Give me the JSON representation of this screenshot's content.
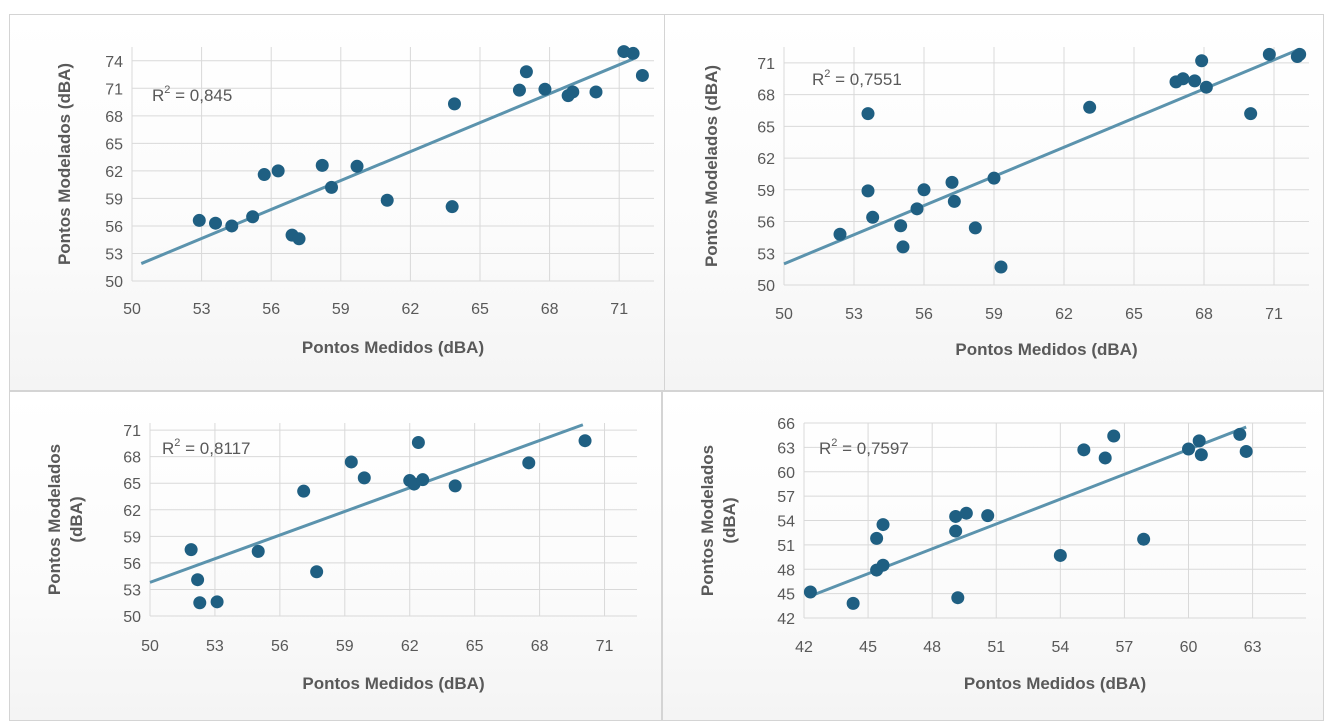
{
  "chart_data": [
    {
      "type": "scatter",
      "annotation": {
        "prefix": "R",
        "sup": "2",
        "text": " = 0,845"
      },
      "xlabel": "Pontos Medidos (dBA)",
      "ylabel": "Pontos Modelados (dBA)",
      "xlim": [
        50,
        72.5
      ],
      "ylim": [
        50,
        75.5
      ],
      "xticks": [
        50,
        53,
        56,
        59,
        62,
        65,
        68,
        71
      ],
      "yticks": [
        50,
        53,
        56,
        59,
        62,
        65,
        68,
        71,
        74
      ],
      "grid": true,
      "points": [
        [
          52.9,
          56.6
        ],
        [
          53.6,
          56.3
        ],
        [
          54.3,
          56.0
        ],
        [
          55.2,
          57.0
        ],
        [
          55.7,
          61.6
        ],
        [
          56.3,
          62.0
        ],
        [
          56.9,
          55.0
        ],
        [
          57.2,
          54.6
        ],
        [
          58.2,
          62.6
        ],
        [
          58.6,
          60.2
        ],
        [
          59.7,
          62.5
        ],
        [
          61.0,
          58.8
        ],
        [
          63.9,
          69.3
        ],
        [
          63.8,
          58.1
        ],
        [
          66.7,
          70.8
        ],
        [
          67.0,
          72.8
        ],
        [
          67.8,
          70.9
        ],
        [
          68.8,
          70.2
        ],
        [
          69.0,
          70.6
        ],
        [
          70.0,
          70.6
        ],
        [
          71.2,
          75.0
        ],
        [
          71.6,
          74.8
        ],
        [
          72.0,
          72.4
        ]
      ],
      "trendline": [
        [
          50.4,
          51.9
        ],
        [
          71.6,
          74.2
        ]
      ],
      "colors": {
        "marker": "#1f5f82",
        "trend": "#5b93ad",
        "grid": "#d9d9d9"
      }
    },
    {
      "type": "scatter",
      "annotation": {
        "prefix": "R",
        "sup": "2",
        "text": " = 0,7551"
      },
      "xlabel": "Pontos Medidos (dBA)",
      "ylabel": "Pontos Modelados (dBA)",
      "xlim": [
        50,
        72.5
      ],
      "ylim": [
        50,
        72.5
      ],
      "xticks": [
        50,
        53,
        56,
        59,
        62,
        65,
        68,
        71
      ],
      "yticks": [
        50,
        53,
        56,
        59,
        62,
        65,
        68,
        71
      ],
      "grid": true,
      "points": [
        [
          52.4,
          54.8
        ],
        [
          53.6,
          66.2
        ],
        [
          53.6,
          58.9
        ],
        [
          53.8,
          56.4
        ],
        [
          55.0,
          55.6
        ],
        [
          55.1,
          53.6
        ],
        [
          55.7,
          57.2
        ],
        [
          56.0,
          59.0
        ],
        [
          57.2,
          59.7
        ],
        [
          57.3,
          57.9
        ],
        [
          58.2,
          55.4
        ],
        [
          59.0,
          60.1
        ],
        [
          59.3,
          51.7
        ],
        [
          63.1,
          66.8
        ],
        [
          66.8,
          69.2
        ],
        [
          67.1,
          69.5
        ],
        [
          67.6,
          69.3
        ],
        [
          67.9,
          71.2
        ],
        [
          68.1,
          68.7
        ],
        [
          70.0,
          66.2
        ],
        [
          70.8,
          71.8
        ],
        [
          72.0,
          71.6
        ],
        [
          72.1,
          71.8
        ]
      ],
      "trendline": [
        [
          50.0,
          52.0
        ],
        [
          72.1,
          72.3
        ]
      ],
      "colors": {
        "marker": "#1f5f82",
        "trend": "#5b93ad",
        "grid": "#d9d9d9"
      }
    },
    {
      "type": "scatter",
      "annotation": {
        "prefix": "R",
        "sup": "2",
        "text": " = 0,8117"
      },
      "xlabel": "Pontos Medidos (dBA)",
      "ylabel_lines": [
        "Pontos Modelados",
        "(dBA)"
      ],
      "xlim": [
        50,
        72.5
      ],
      "ylim": [
        50,
        71.8
      ],
      "xticks": [
        50,
        53,
        56,
        59,
        62,
        65,
        68,
        71
      ],
      "yticks": [
        50,
        53,
        56,
        59,
        62,
        65,
        68,
        71
      ],
      "grid": true,
      "points": [
        [
          51.9,
          57.5
        ],
        [
          52.2,
          54.1
        ],
        [
          52.3,
          51.5
        ],
        [
          53.1,
          51.6
        ],
        [
          55.0,
          57.3
        ],
        [
          57.1,
          64.1
        ],
        [
          57.7,
          55.0
        ],
        [
          59.3,
          67.4
        ],
        [
          59.9,
          65.6
        ],
        [
          62.0,
          65.3
        ],
        [
          62.2,
          64.9
        ],
        [
          62.4,
          69.6
        ],
        [
          62.6,
          65.4
        ],
        [
          64.1,
          64.7
        ],
        [
          67.5,
          67.3
        ],
        [
          70.1,
          69.8
        ]
      ],
      "trendline": [
        [
          50.0,
          53.8
        ],
        [
          70.0,
          71.6
        ]
      ],
      "colors": {
        "marker": "#1f5f82",
        "trend": "#5b93ad",
        "grid": "#d9d9d9"
      }
    },
    {
      "type": "scatter",
      "annotation": {
        "prefix": "R",
        "sup": "2",
        "text": " = 0,7597"
      },
      "xlabel": "Pontos Medidos (dBA)",
      "ylabel_lines": [
        "Pontos Modelados",
        "(dBA)"
      ],
      "xlim": [
        42,
        65.5
      ],
      "ylim": [
        42,
        66
      ],
      "xticks": [
        42,
        45,
        48,
        51,
        54,
        57,
        60,
        63
      ],
      "yticks": [
        42,
        45,
        48,
        51,
        54,
        57,
        60,
        63,
        66
      ],
      "grid": true,
      "points": [
        [
          42.3,
          45.2
        ],
        [
          44.3,
          43.8
        ],
        [
          45.4,
          51.8
        ],
        [
          45.4,
          47.9
        ],
        [
          45.7,
          48.5
        ],
        [
          45.7,
          53.5
        ],
        [
          49.1,
          54.5
        ],
        [
          49.1,
          52.7
        ],
        [
          49.2,
          44.5
        ],
        [
          49.6,
          54.9
        ],
        [
          50.6,
          54.6
        ],
        [
          54.0,
          49.7
        ],
        [
          55.1,
          62.7
        ],
        [
          56.5,
          64.4
        ],
        [
          56.1,
          61.7
        ],
        [
          57.9,
          51.7
        ],
        [
          60.0,
          62.8
        ],
        [
          60.5,
          63.8
        ],
        [
          60.6,
          62.1
        ],
        [
          62.4,
          64.6
        ],
        [
          62.7,
          62.5
        ]
      ],
      "trendline": [
        [
          42.2,
          44.6
        ],
        [
          62.7,
          65.5
        ]
      ],
      "colors": {
        "marker": "#1f5f82",
        "trend": "#5b93ad",
        "grid": "#d9d9d9"
      }
    }
  ]
}
